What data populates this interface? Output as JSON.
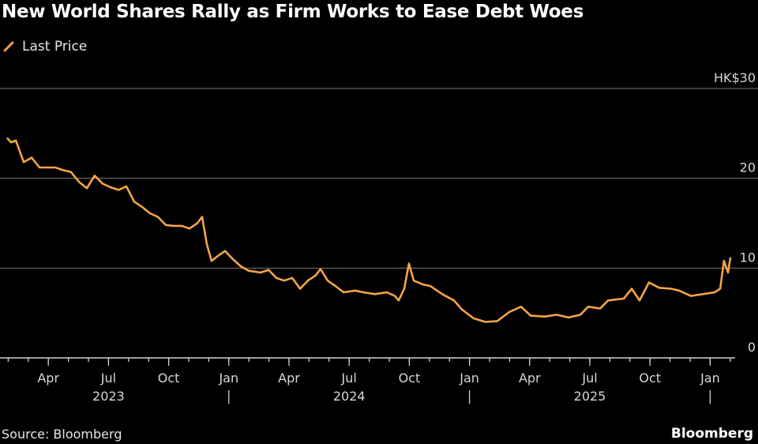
{
  "title": "New World Shares Rally as Firm Works to Ease Debt Woes",
  "source": "Source: Bloomberg",
  "brand": "Bloomberg",
  "colors": {
    "line": "#f5a447",
    "grid": "#7a7a7a",
    "background": "#000000"
  },
  "chart_data": {
    "type": "line",
    "title": "New World Shares Rally as Firm Works to Ease Debt Woes",
    "xlabel": "",
    "ylabel": "",
    "x_units": "months since Jan 1, 2023",
    "ylim": [
      0,
      30
    ],
    "y_ticks": [
      {
        "value": 0,
        "label": "0"
      },
      {
        "value": 10,
        "label": "10"
      },
      {
        "value": 20,
        "label": "20"
      },
      {
        "value": 30,
        "label": "HK$30"
      }
    ],
    "x_ticks": [
      {
        "value": 3,
        "label": "Apr"
      },
      {
        "value": 6,
        "label": "Jul"
      },
      {
        "value": 9,
        "label": "Oct"
      },
      {
        "value": 12,
        "label": "Jan"
      },
      {
        "value": 15,
        "label": "Apr"
      },
      {
        "value": 18,
        "label": "Jul"
      },
      {
        "value": 21,
        "label": "Oct"
      },
      {
        "value": 24,
        "label": "Jan"
      },
      {
        "value": 27,
        "label": "Apr"
      },
      {
        "value": 30,
        "label": "Jul"
      },
      {
        "value": 33,
        "label": "Oct"
      },
      {
        "value": 36,
        "label": "Jan"
      }
    ],
    "years": [
      {
        "center": 6,
        "label": "2023"
      },
      {
        "center": 18,
        "label": "2024"
      },
      {
        "center": 30,
        "label": "2025"
      }
    ],
    "year_separators": [
      12,
      24,
      36
    ],
    "grid": true,
    "legend": "top-left",
    "series": [
      {
        "name": "Last Price",
        "x": [
          0.94,
          1.14,
          1.38,
          1.77,
          2.17,
          2.56,
          3.35,
          3.74,
          4.13,
          4.53,
          4.92,
          5.31,
          5.71,
          6.1,
          6.5,
          6.89,
          7.28,
          7.68,
          8.07,
          8.46,
          8.86,
          9.25,
          9.65,
          10.04,
          10.43,
          10.67,
          10.91,
          11.14,
          11.42,
          11.81,
          12.2,
          12.6,
          12.99,
          13.58,
          13.98,
          14.37,
          14.76,
          15.16,
          15.55,
          15.94,
          16.34,
          16.57,
          16.93,
          17.32,
          17.72,
          18.31,
          18.7,
          19.29,
          19.88,
          20.28,
          20.47,
          20.75,
          20.98,
          21.22,
          21.65,
          22.05,
          22.64,
          23.23,
          23.62,
          24.21,
          24.8,
          25.39,
          25.98,
          26.57,
          27.05,
          27.76,
          28.35,
          28.94,
          29.53,
          29.92,
          30.51,
          30.91,
          31.69,
          32.09,
          32.48,
          32.95,
          33.46,
          34.06,
          34.45,
          35.04,
          35.63,
          36.22,
          36.5,
          36.69,
          36.89,
          37.01
        ],
        "values": [
          24.5,
          24.0,
          24.2,
          21.8,
          22.3,
          21.2,
          21.2,
          20.9,
          20.7,
          19.6,
          18.9,
          20.3,
          19.4,
          19.0,
          18.7,
          19.1,
          17.4,
          16.8,
          16.1,
          15.7,
          14.8,
          14.7,
          14.7,
          14.4,
          15.0,
          15.7,
          12.6,
          10.8,
          11.3,
          11.9,
          11.0,
          10.2,
          9.7,
          9.5,
          9.8,
          8.9,
          8.6,
          8.9,
          7.7,
          8.6,
          9.2,
          9.9,
          8.6,
          8.0,
          7.3,
          7.5,
          7.3,
          7.1,
          7.3,
          6.9,
          6.4,
          7.7,
          10.5,
          8.6,
          8.2,
          8.0,
          7.1,
          6.4,
          5.4,
          4.4,
          4.0,
          4.1,
          5.1,
          5.7,
          4.7,
          4.6,
          4.8,
          4.5,
          4.8,
          5.7,
          5.5,
          6.4,
          6.6,
          7.7,
          6.4,
          8.4,
          7.8,
          7.7,
          7.5,
          6.9,
          7.1,
          7.3,
          7.7,
          10.8,
          9.5,
          11.2
        ]
      }
    ]
  }
}
